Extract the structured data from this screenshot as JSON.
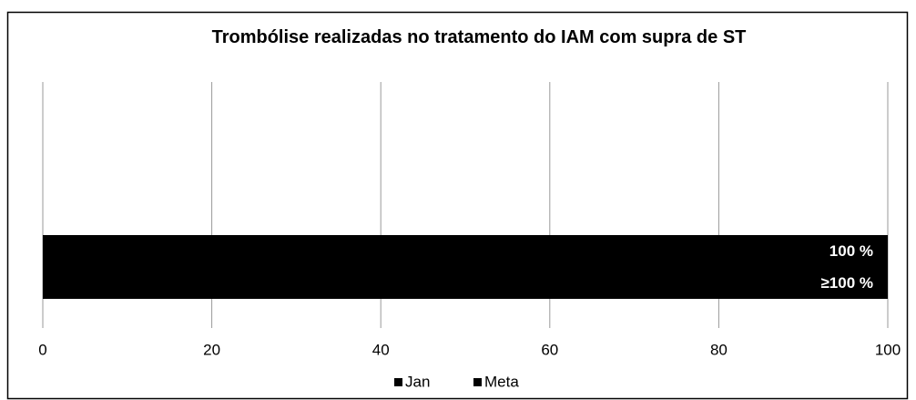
{
  "chart_data": {
    "type": "bar",
    "orientation": "horizontal",
    "title": "Trombólise realizadas no tratamento do IAM com supra de ST",
    "categories": [
      null
    ],
    "series": [
      {
        "name": "Jan",
        "color": "#000000",
        "values": [
          100
        ],
        "value_labels": [
          "100 %"
        ]
      },
      {
        "name": "Meta",
        "color": "#000000",
        "values": [
          100
        ],
        "value_labels": [
          "≥100 %"
        ]
      }
    ],
    "xlim": [
      0,
      100
    ],
    "xticks": [
      0,
      20,
      40,
      60,
      80,
      100
    ],
    "grid": true,
    "legend": "bottom"
  }
}
